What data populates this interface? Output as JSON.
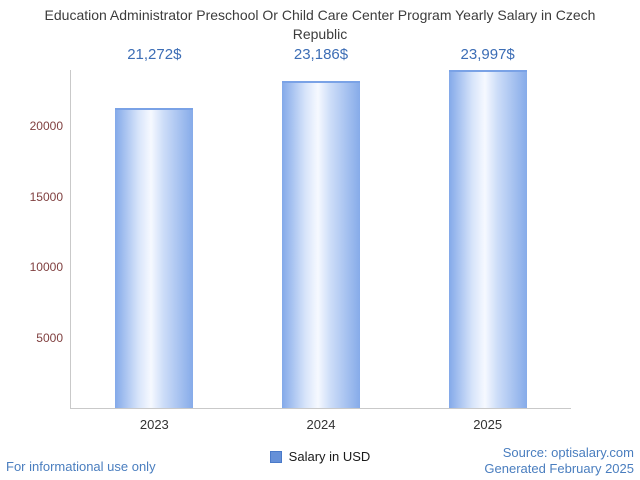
{
  "chart_data": {
    "type": "bar",
    "title": "Education Administrator Preschool Or Child Care Center Program Yearly Salary in Czech Republic",
    "categories": [
      "2023",
      "2024",
      "2025"
    ],
    "values": [
      21272,
      23186,
      23997
    ],
    "value_labels": [
      "21,272$",
      "23,186$",
      "23,997$"
    ],
    "xlabel": "",
    "ylabel": "",
    "ylim": [
      0,
      24000
    ],
    "yticks": [
      5000,
      10000,
      15000,
      20000
    ],
    "grid": false,
    "legend": "Salary in USD",
    "legend_position": "bottom"
  },
  "footer": {
    "disclaimer": "For informational use only",
    "source": "Source: optisalary.com",
    "generated": "Generated February 2025"
  },
  "colors": {
    "bar_fill": "#86abe9",
    "bar_edge": "#7aa2e6",
    "value_label": "#3c6db5",
    "y_tick": "#804040",
    "x_tick": "#333333",
    "footer_text": "#4a7ebf",
    "axis_line": "#c9c9c9",
    "legend_swatch": "#6590d8"
  }
}
